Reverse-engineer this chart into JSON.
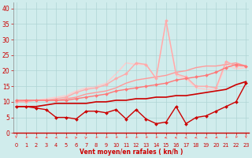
{
  "xlabel": "Vent moyen/en rafales ( kn/h )",
  "background_color": "#d0ecec",
  "grid_color": "#aed4d4",
  "x_ticks": [
    0,
    1,
    2,
    3,
    4,
    5,
    6,
    7,
    8,
    9,
    10,
    11,
    12,
    13,
    14,
    15,
    16,
    17,
    18,
    19,
    20,
    21,
    22,
    23
  ],
  "ylim": [
    0,
    42
  ],
  "xlim": [
    -0.3,
    23.3
  ],
  "yticks": [
    0,
    5,
    10,
    15,
    20,
    25,
    30,
    35,
    40
  ],
  "lines": [
    {
      "x": [
        0,
        1,
        2,
        3,
        4,
        5,
        6,
        7,
        8,
        9,
        10,
        11,
        12,
        13,
        14,
        15,
        16,
        17,
        18,
        19,
        20,
        21,
        22,
        23
      ],
      "y": [
        8.5,
        8.5,
        8.0,
        7.5,
        5.0,
        5.0,
        4.5,
        7.0,
        7.0,
        6.5,
        7.5,
        4.5,
        7.5,
        4.5,
        3.0,
        3.5,
        8.5,
        3.0,
        5.0,
        5.5,
        7.0,
        8.5,
        10.0,
        16.0
      ],
      "color": "#cc0000",
      "lw": 1.0,
      "marker": "D",
      "ms": 2.0,
      "zorder": 5
    },
    {
      "x": [
        0,
        1,
        2,
        3,
        4,
        5,
        6,
        7,
        8,
        9,
        10,
        11,
        12,
        13,
        14,
        15,
        16,
        17,
        18,
        19,
        20,
        21,
        22,
        23
      ],
      "y": [
        8.5,
        8.5,
        8.5,
        9.0,
        9.5,
        9.5,
        9.5,
        9.5,
        10.0,
        10.0,
        10.5,
        10.5,
        11.0,
        11.0,
        11.5,
        11.5,
        12.0,
        12.0,
        12.5,
        13.0,
        13.5,
        14.0,
        15.5,
        16.5
      ],
      "color": "#cc0000",
      "lw": 1.2,
      "marker": null,
      "ms": 0,
      "zorder": 4
    },
    {
      "x": [
        0,
        1,
        2,
        3,
        4,
        5,
        6,
        7,
        8,
        9,
        10,
        11,
        12,
        13,
        14,
        15,
        16,
        17,
        18,
        19,
        20,
        21,
        22,
        23
      ],
      "y": [
        10.5,
        10.5,
        10.5,
        10.5,
        10.5,
        10.5,
        11.0,
        11.5,
        12.0,
        12.5,
        13.5,
        14.0,
        14.5,
        15.0,
        15.5,
        16.0,
        17.0,
        17.5,
        18.0,
        18.5,
        19.5,
        21.0,
        22.0,
        21.5
      ],
      "color": "#ff7777",
      "lw": 1.0,
      "marker": "D",
      "ms": 2.0,
      "zorder": 3
    },
    {
      "x": [
        0,
        1,
        2,
        3,
        4,
        5,
        6,
        7,
        8,
        9,
        10,
        11,
        12,
        13,
        14,
        15,
        16,
        17,
        18,
        19,
        20,
        21,
        22,
        23
      ],
      "y": [
        10.0,
        10.5,
        10.5,
        10.5,
        10.5,
        11.0,
        11.5,
        12.5,
        13.0,
        13.5,
        14.5,
        16.0,
        17.0,
        17.5,
        18.0,
        18.5,
        19.5,
        20.0,
        21.0,
        21.5,
        21.5,
        22.0,
        22.5,
        21.5
      ],
      "color": "#ff9999",
      "lw": 1.0,
      "marker": null,
      "ms": 0,
      "zorder": 2
    },
    {
      "x": [
        0,
        1,
        2,
        3,
        4,
        5,
        6,
        7,
        8,
        9,
        10,
        11,
        12,
        13,
        14,
        15,
        16,
        17,
        18,
        19,
        20,
        21,
        22,
        23
      ],
      "y": [
        10.0,
        10.0,
        10.5,
        10.5,
        11.0,
        11.5,
        13.0,
        14.0,
        14.5,
        15.5,
        17.5,
        19.0,
        22.5,
        22.0,
        17.5,
        36.0,
        19.0,
        18.0,
        15.0,
        15.0,
        14.5,
        23.0,
        21.5,
        21.5
      ],
      "color": "#ffaaaa",
      "lw": 1.0,
      "marker": "D",
      "ms": 2.0,
      "zorder": 2
    },
    {
      "x": [
        0,
        1,
        2,
        3,
        4,
        5,
        6,
        7,
        8,
        9,
        10,
        11,
        12,
        13,
        14,
        15,
        16,
        17,
        18,
        19,
        20,
        21,
        22,
        23
      ],
      "y": [
        10.5,
        10.5,
        10.5,
        11.0,
        11.5,
        12.0,
        13.5,
        14.5,
        15.0,
        16.0,
        19.0,
        22.5,
        22.0,
        22.0,
        17.5,
        36.0,
        18.5,
        17.5,
        14.5,
        14.0,
        14.0,
        22.0,
        20.5,
        21.0
      ],
      "color": "#ffcccc",
      "lw": 1.0,
      "marker": null,
      "ms": 0,
      "zorder": 1
    }
  ],
  "wind_arrows": {
    "angles_deg": [
      180,
      200,
      210,
      220,
      230,
      210,
      60,
      45,
      200,
      200,
      200,
      200,
      200,
      200,
      200,
      270,
      280,
      260,
      250,
      230,
      220,
      200,
      190,
      180
    ],
    "color": "#ff4444",
    "positions": [
      0,
      1,
      2,
      3,
      4,
      5,
      6,
      7,
      8,
      9,
      10,
      11,
      12,
      13,
      14,
      15,
      16,
      17,
      18,
      19,
      20,
      21,
      22,
      23
    ]
  }
}
